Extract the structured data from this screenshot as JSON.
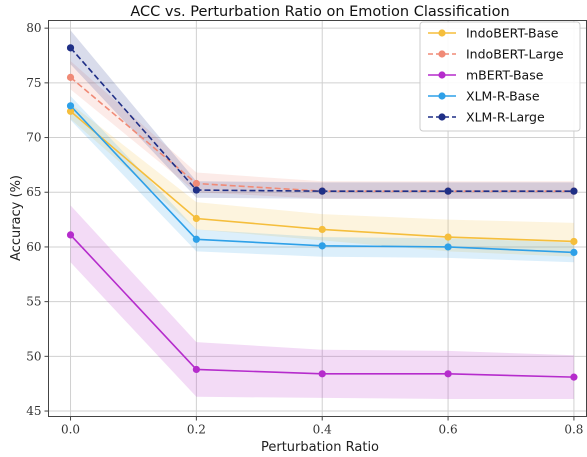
{
  "chart_data": {
    "type": "line",
    "title": "ACC vs. Perturbation Ratio on Emotion Classification",
    "xlabel": "Perturbation Ratio",
    "ylabel": "Accuracy (%)",
    "x": [
      0.0,
      0.2,
      0.4,
      0.6,
      0.8
    ],
    "x_tick_labels": [
      "0.0",
      "0.2",
      "0.4",
      "0.6",
      "0.8"
    ],
    "xlim": [
      -0.035,
      0.82
    ],
    "ylim": [
      44.5,
      80.7
    ],
    "yticks": [
      45,
      50,
      55,
      60,
      65,
      70,
      75,
      80
    ],
    "grid": true,
    "legend_position": "top-right",
    "series": [
      {
        "name": "IndoBERT-Base",
        "color": "#f5be3c",
        "linestyle": "solid",
        "values": [
          72.4,
          62.6,
          61.6,
          60.9,
          60.5
        ],
        "band_low": [
          71.7,
          61.6,
          60.6,
          59.6,
          59.1
        ],
        "band_high": [
          73.1,
          64.1,
          63.0,
          62.5,
          62.2
        ]
      },
      {
        "name": "IndoBERT-Large",
        "color": "#f08a76",
        "linestyle": "dashed",
        "values": [
          75.5,
          65.8,
          65.1,
          65.1,
          65.1
        ],
        "band_low": [
          74.4,
          65.0,
          64.4,
          64.4,
          64.4
        ],
        "band_high": [
          77.0,
          66.8,
          66.0,
          66.0,
          66.0
        ]
      },
      {
        "name": "mBERT-Base",
        "color": "#b52ccc",
        "linestyle": "solid",
        "values": [
          61.1,
          48.8,
          48.4,
          48.4,
          48.1
        ],
        "band_low": [
          58.6,
          46.3,
          46.2,
          46.1,
          46.1
        ],
        "band_high": [
          63.8,
          51.3,
          50.6,
          50.5,
          50.1
        ]
      },
      {
        "name": "XLM-R-Base",
        "color": "#2ea0e8",
        "linestyle": "solid",
        "values": [
          72.9,
          60.7,
          60.1,
          60.0,
          59.5
        ],
        "band_low": [
          71.6,
          59.6,
          59.1,
          59.0,
          58.6
        ],
        "band_high": [
          73.8,
          61.6,
          60.9,
          60.8,
          60.4
        ]
      },
      {
        "name": "XLM-R-Large",
        "color": "#1f2f86",
        "linestyle": "dashed",
        "values": [
          78.2,
          65.2,
          65.1,
          65.1,
          65.1
        ],
        "band_low": [
          76.7,
          64.5,
          64.4,
          64.4,
          64.4
        ],
        "band_high": [
          79.8,
          66.0,
          65.9,
          65.9,
          65.9
        ]
      }
    ]
  }
}
